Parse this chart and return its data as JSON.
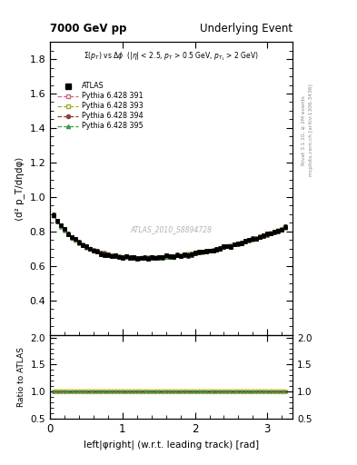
{
  "title_left": "7000 GeV pp",
  "title_right": "Underlying Event",
  "watermark": "ATLAS_2010_S8894728",
  "right_label_top": "Rivet 3.1.10, ≥ 2M events",
  "right_label_bottom": "mcplots.cern.ch [arXiv:1306.3436]",
  "ylabel_main": "⟨d² p_T/dηdφ⟩",
  "ylabel_ratio": "Ratio to ATLAS",
  "xlabel": "left|φright| (w.r.t. leading track) [rad]",
  "ylim_main": [
    0.2,
    1.9
  ],
  "ylim_ratio": [
    0.5,
    2.05
  ],
  "yticks_main": [
    0.4,
    0.6,
    0.8,
    1.0,
    1.2,
    1.4,
    1.6,
    1.8
  ],
  "yticks_ratio": [
    0.5,
    1.0,
    1.5,
    2.0
  ],
  "xlim": [
    0.0,
    3.35
  ],
  "xticks": [
    0,
    1,
    2,
    3
  ],
  "legend_entries": [
    "ATLAS",
    "Pythia 6.428 391",
    "Pythia 6.428 393",
    "Pythia 6.428 394",
    "Pythia 6.428 395"
  ],
  "atlas_color": "#000000",
  "pythia_colors": [
    "#cc6688",
    "#aaaa33",
    "#884444",
    "#449944"
  ],
  "background_color": "#ffffff"
}
